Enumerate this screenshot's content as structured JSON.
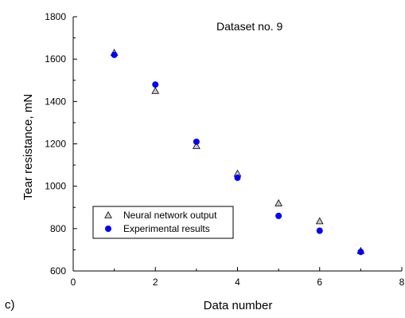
{
  "chart_data": {
    "type": "scatter",
    "annotation": "Dataset no. 9",
    "panel_label": "c)",
    "xlabel": "Data number",
    "ylabel": "Tear resistance, mN",
    "xlim": [
      0,
      8
    ],
    "ylim": [
      600,
      1800
    ],
    "xticks": [
      0,
      2,
      4,
      6,
      8
    ],
    "yticks": [
      600,
      800,
      1000,
      1200,
      1400,
      1600,
      1800
    ],
    "grid": false,
    "legend_position": "lower-left",
    "series": [
      {
        "name": "Neural network output",
        "marker": "triangle",
        "color": "#c8c8c8",
        "x": [
          1,
          2,
          3,
          4,
          5,
          6,
          7
        ],
        "y": [
          1630,
          1450,
          1190,
          1060,
          920,
          835,
          695
        ]
      },
      {
        "name": "Experimental results",
        "marker": "circle",
        "color": "#0000ff",
        "x": [
          1,
          2,
          3,
          4,
          5,
          6,
          7
        ],
        "y": [
          1620,
          1480,
          1210,
          1040,
          860,
          790,
          690
        ]
      }
    ]
  }
}
